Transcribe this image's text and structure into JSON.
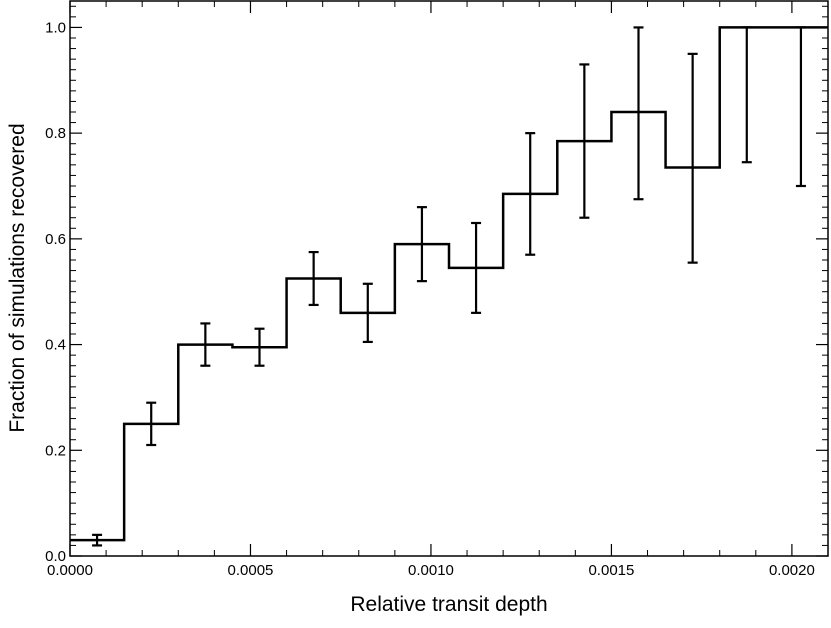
{
  "chart_data": {
    "type": "step",
    "title": "",
    "xlabel": "Relative transit depth",
    "ylabel": "Fraction of  simulations recovered",
    "xlim": [
      0.0,
      0.0021
    ],
    "ylim": [
      0.0,
      1.05
    ],
    "x_ticks": [
      0.0,
      0.0005,
      0.001,
      0.0015,
      0.002
    ],
    "x_tick_labels": [
      "0.0000",
      "0.0005",
      "0.0010",
      "0.0015",
      "0.0020"
    ],
    "y_ticks": [
      0.0,
      0.2,
      0.4,
      0.6,
      0.8,
      1.0
    ],
    "y_tick_labels": [
      "0.0",
      "0.2",
      "0.4",
      "0.6",
      "0.8",
      "1.0"
    ],
    "bin_width": 0.00015,
    "bins": [
      {
        "x0": 0.0,
        "x1": 0.00015,
        "value": 0.03,
        "err_low": 0.02,
        "err_high": 0.04
      },
      {
        "x0": 0.00015,
        "x1": 0.0003,
        "value": 0.25,
        "err_low": 0.21,
        "err_high": 0.29
      },
      {
        "x0": 0.0003,
        "x1": 0.00045,
        "value": 0.4,
        "err_low": 0.36,
        "err_high": 0.44
      },
      {
        "x0": 0.00045,
        "x1": 0.0006,
        "value": 0.395,
        "err_low": 0.36,
        "err_high": 0.43
      },
      {
        "x0": 0.0006,
        "x1": 0.00075,
        "value": 0.525,
        "err_low": 0.475,
        "err_high": 0.575
      },
      {
        "x0": 0.00075,
        "x1": 0.0009,
        "value": 0.46,
        "err_low": 0.405,
        "err_high": 0.515
      },
      {
        "x0": 0.0009,
        "x1": 0.00105,
        "value": 0.59,
        "err_low": 0.52,
        "err_high": 0.66
      },
      {
        "x0": 0.00105,
        "x1": 0.0012,
        "value": 0.545,
        "err_low": 0.46,
        "err_high": 0.63
      },
      {
        "x0": 0.0012,
        "x1": 0.00135,
        "value": 0.685,
        "err_low": 0.57,
        "err_high": 0.8
      },
      {
        "x0": 0.00135,
        "x1": 0.0015,
        "value": 0.785,
        "err_low": 0.64,
        "err_high": 0.93
      },
      {
        "x0": 0.0015,
        "x1": 0.00165,
        "value": 0.84,
        "err_low": 0.675,
        "err_high": 1.0
      },
      {
        "x0": 0.00165,
        "x1": 0.0018,
        "value": 0.735,
        "err_low": 0.555,
        "err_high": 0.95
      },
      {
        "x0": 0.0018,
        "x1": 0.00195,
        "value": 1.0,
        "err_low": 0.745,
        "err_high": 1.0
      },
      {
        "x0": 0.00195,
        "x1": 0.0021,
        "value": 1.0,
        "err_low": 0.7,
        "err_high": 1.0
      }
    ],
    "grid": false,
    "line_color": "#000000"
  }
}
